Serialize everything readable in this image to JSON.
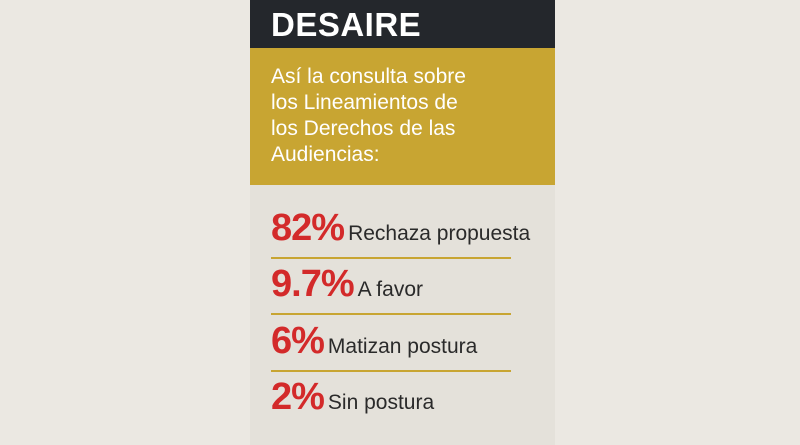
{
  "header": {
    "title": "DESAIRE"
  },
  "subtitle": {
    "lines": [
      "Así la consulta sobre",
      "los Lineamientos de",
      "los Derechos de las",
      "Audiencias:"
    ]
  },
  "items": [
    {
      "percent": "82%",
      "label": "Rechaza propuesta"
    },
    {
      "percent": "9.7%",
      "label": "A favor"
    },
    {
      "percent": "6%",
      "label": "Matizan postura"
    },
    {
      "percent": "2%",
      "label": "Sin postura"
    }
  ]
}
